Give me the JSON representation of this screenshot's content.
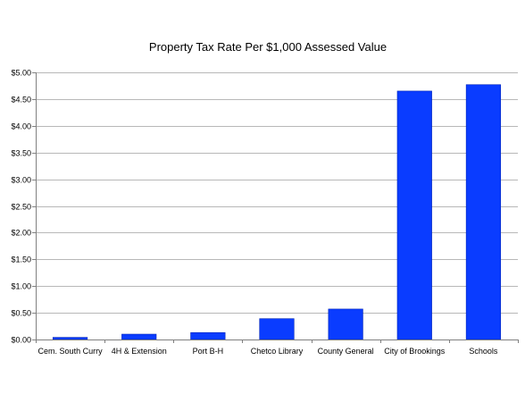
{
  "chart_data": {
    "type": "bar",
    "title": "Property Tax Rate Per $1,000 Assessed Value",
    "xlabel": "",
    "ylabel": "",
    "categories": [
      "Cem. South Curry",
      "4H & Extension",
      "Port B-H",
      "Chetco Library",
      "County General",
      "City of Brookings",
      "Schools"
    ],
    "values": [
      0.04,
      0.1,
      0.13,
      0.39,
      0.57,
      4.65,
      4.77
    ],
    "ylim": [
      0,
      5
    ],
    "yticks": [
      "$0.00",
      "$0.50",
      "$1.00",
      "$1.50",
      "$2.00",
      "$2.50",
      "$3.00",
      "$3.50",
      "$4.00",
      "$4.50",
      "$5.00"
    ],
    "ytick_values": [
      0,
      0.5,
      1,
      1.5,
      2,
      2.5,
      3,
      3.5,
      4,
      4.5,
      5
    ],
    "grid": true,
    "legend": "none",
    "bar_color": "#0a3cff",
    "bar_shadow_color": "#0024b8",
    "grid_color": "#b8b8b8",
    "axis_color": "#808080"
  }
}
